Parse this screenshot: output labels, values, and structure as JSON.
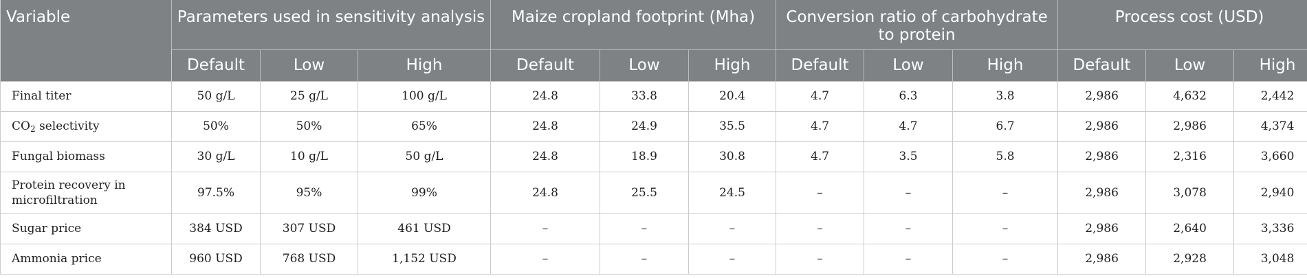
{
  "header": {
    "variable": "Variable",
    "groups": [
      "Parameters used in sensitivity analysis",
      "Maize cropland footprint (Mha)",
      "Conversion ratio of carbohydrate to protein",
      "Process cost (USD)"
    ],
    "sub": [
      "Default",
      "Low",
      "High"
    ]
  },
  "rows": [
    {
      "name": "Final titer",
      "values": [
        "50 g/L",
        "25 g/L",
        "100 g/L",
        "24.8",
        "33.8",
        "20.4",
        "4.7",
        "6.3",
        "3.8",
        "2,986",
        "4,632",
        "2,442"
      ]
    },
    {
      "name_pre": "CO",
      "name_sub": "2",
      "name_post": " selectivity",
      "values": [
        "50%",
        "50%",
        "65%",
        "24.8",
        "24.9",
        "35.5",
        "4.7",
        "4.7",
        "6.7",
        "2,986",
        "2,986",
        "4,374"
      ]
    },
    {
      "name": "Fungal biomass",
      "values": [
        "30 g/L",
        "10 g/L",
        "50 g/L",
        "24.8",
        "18.9",
        "30.8",
        "4.7",
        "3.5",
        "5.8",
        "2,986",
        "2,316",
        "3,660"
      ]
    },
    {
      "name_line1": "Protein recovery in",
      "name_line2": "microfiltration",
      "values": [
        "97.5%",
        "95%",
        "99%",
        "24.8",
        "25.5",
        "24.5",
        "–",
        "–",
        "–",
        "2,986",
        "3,078",
        "2,940"
      ]
    },
    {
      "name": "Sugar price",
      "values": [
        "384 USD",
        "307 USD",
        "461 USD",
        "–",
        "–",
        "–",
        "–",
        "–",
        "–",
        "2,986",
        "2,640",
        "3,336"
      ]
    },
    {
      "name": "Ammonia price",
      "values": [
        "960 USD",
        "768 USD",
        "1,152 USD",
        "–",
        "–",
        "–",
        "–",
        "–",
        "–",
        "2,986",
        "2,928",
        "3,048"
      ]
    }
  ]
}
